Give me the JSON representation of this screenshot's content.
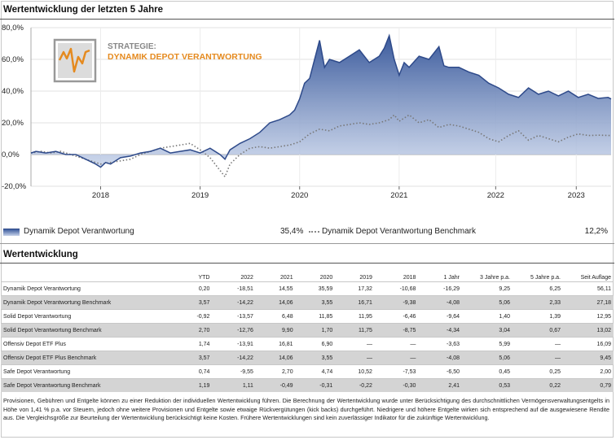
{
  "title": "Wertentwicklung der letzten 5 Jahre",
  "colors": {
    "fund": "#2e4a8a",
    "fill_top": "#3a5a9c",
    "fill_bottom": "#c7d3ea",
    "benchmark": "#777777",
    "logo_orange": "#e58a1f",
    "logo_frame": "#999999"
  },
  "logo": {
    "line1": "STRATEGIE:",
    "line2": "DYNAMIK DEPOT VERANTWORTUNG"
  },
  "chart_data": {
    "type": "line",
    "ylim": [
      -20,
      80
    ],
    "yticks": [
      "80,0%",
      "60,0%",
      "40,0%",
      "20,0%",
      "0,0%",
      "-20,0%"
    ],
    "ytick_values": [
      80,
      60,
      40,
      20,
      0,
      -20
    ],
    "xlim": [
      2017.3,
      2023.13
    ],
    "xticks": [
      "2018",
      "2019",
      "2020",
      "2021",
      "2022",
      "2023"
    ],
    "xtick_values": [
      2018.0,
      2019.0,
      2020.0,
      2021.0,
      2021.97,
      2022.78
    ],
    "grid": true,
    "series": [
      {
        "name": "Dynamik Depot Verantwortung",
        "x": [
          2017.3,
          2017.35,
          2017.45,
          2017.55,
          2017.65,
          2017.75,
          2017.85,
          2017.95,
          2018.0,
          2018.05,
          2018.1,
          2018.15,
          2018.2,
          2018.3,
          2018.4,
          2018.5,
          2018.6,
          2018.7,
          2018.8,
          2018.9,
          2019.0,
          2019.1,
          2019.2,
          2019.25,
          2019.3,
          2019.4,
          2019.5,
          2019.6,
          2019.7,
          2019.8,
          2019.9,
          2019.95,
          2020.0,
          2020.05,
          2020.1,
          2020.15,
          2020.2,
          2020.25,
          2020.3,
          2020.4,
          2020.5,
          2020.6,
          2020.7,
          2020.8,
          2020.85,
          2020.9,
          2020.95,
          2021.0,
          2021.05,
          2021.1,
          2021.2,
          2021.3,
          2021.4,
          2021.45,
          2021.5,
          2021.6,
          2021.7,
          2021.8,
          2021.9,
          2022.0,
          2022.1,
          2022.2,
          2022.3,
          2022.4,
          2022.5,
          2022.6,
          2022.7,
          2022.8,
          2022.9,
          2023.0,
          2023.1,
          2023.13
        ],
        "values": [
          1,
          2,
          1,
          2,
          0,
          0,
          -3,
          -6,
          -8,
          -5,
          -6,
          -4,
          -2,
          -1,
          1,
          2,
          4,
          1,
          2,
          3,
          1,
          4,
          0,
          -3,
          3,
          7,
          10,
          14,
          20,
          22,
          25,
          28,
          35,
          45,
          48,
          60,
          72,
          55,
          60,
          58,
          62,
          66,
          58,
          62,
          67,
          75,
          60,
          50,
          58,
          55,
          62,
          60,
          68,
          56,
          55,
          55,
          52,
          50,
          45,
          42,
          38,
          36,
          42,
          38,
          40,
          37,
          40,
          36,
          38,
          35.4,
          36,
          35
        ]
      },
      {
        "name": "Dynamik Depot Verantwortung Benchmark",
        "x": [
          2017.3,
          2017.4,
          2017.5,
          2017.6,
          2017.7,
          2017.8,
          2017.9,
          2018.0,
          2018.1,
          2018.2,
          2018.3,
          2018.4,
          2018.5,
          2018.6,
          2018.7,
          2018.8,
          2018.9,
          2019.0,
          2019.1,
          2019.2,
          2019.25,
          2019.3,
          2019.4,
          2019.5,
          2019.6,
          2019.7,
          2019.8,
          2019.9,
          2020.0,
          2020.1,
          2020.2,
          2020.3,
          2020.4,
          2020.5,
          2020.6,
          2020.7,
          2020.8,
          2020.9,
          2020.95,
          2021.0,
          2021.1,
          2021.2,
          2021.3,
          2021.4,
          2021.5,
          2021.6,
          2021.7,
          2021.8,
          2021.9,
          2022.0,
          2022.1,
          2022.2,
          2022.3,
          2022.4,
          2022.5,
          2022.6,
          2022.7,
          2022.8,
          2022.9,
          2023.0,
          2023.13
        ],
        "values": [
          1,
          2,
          1,
          2,
          0,
          -2,
          -4,
          -6,
          -5,
          -4,
          -3,
          0,
          2,
          4,
          5,
          6,
          7,
          3,
          -2,
          -10,
          -14,
          -6,
          0,
          4,
          5,
          4,
          5,
          6,
          8,
          13,
          16,
          15,
          18,
          19,
          20,
          19,
          20,
          22,
          25,
          21,
          25,
          20,
          22,
          17,
          19,
          18,
          16,
          14,
          10,
          8,
          12,
          15,
          9,
          12,
          10,
          8,
          11,
          13,
          12,
          12.2,
          12
        ]
      }
    ]
  },
  "legend": {
    "fund_label": "Dynamik Depot Verantwortung",
    "fund_value": "35,4%",
    "bench_label": "Dynamik Depot Verantwortung Benchmark",
    "bench_value": "12,2%"
  },
  "table": {
    "title": "Wertentwicklung",
    "headers": [
      "",
      "YTD",
      "2022",
      "2021",
      "2020",
      "2019",
      "2018",
      "1 Jahr",
      "3 Jahre p.a.",
      "5 Jahre p.a.",
      "Seit Auflage"
    ],
    "rows": [
      [
        "Dynamik Depot Verantwortung",
        "0,20",
        "-18,51",
        "14,55",
        "35,59",
        "17,32",
        "-10,68",
        "-16,29",
        "9,25",
        "6,25",
        "56,11"
      ],
      [
        "Dynamik Depot Verantwortung Benchmark",
        "3,57",
        "-14,22",
        "14,06",
        "3,55",
        "16,71",
        "-9,38",
        "-4,08",
        "5,06",
        "2,33",
        "27,18"
      ],
      [
        "Solid Depot Verantwortung",
        "-0,92",
        "-13,57",
        "6,48",
        "11,85",
        "11,95",
        "-6,46",
        "-9,64",
        "1,40",
        "1,39",
        "12,95"
      ],
      [
        "Solid Depot Verantwortung Benchmark",
        "2,70",
        "-12,76",
        "9,90",
        "1,70",
        "11,75",
        "-8,75",
        "-4,34",
        "3,04",
        "0,67",
        "13,02"
      ],
      [
        "Offensiv Depot ETF Plus",
        "1,74",
        "-13,91",
        "16,81",
        "6,90",
        "—",
        "—",
        "-3,63",
        "5,99",
        "—",
        "16,09"
      ],
      [
        "Offensiv Depot ETF Plus Benchmark",
        "3,57",
        "-14,22",
        "14,06",
        "3,55",
        "—",
        "—",
        "-4,08",
        "5,06",
        "—",
        "9,45"
      ],
      [
        "Safe Depot Verantwortung",
        "0,74",
        "-9,55",
        "2,70",
        "4,74",
        "10,52",
        "-7,53",
        "-6,50",
        "0,45",
        "0,25",
        "2,00"
      ],
      [
        "Safe Depot Verantwortung Benchmark",
        "1,19",
        "1,11",
        "-0,49",
        "-0,31",
        "-0,22",
        "-0,30",
        "2,41",
        "0,53",
        "0,22",
        "0,79"
      ]
    ]
  },
  "footnote": "Provisionen, Gebühren und Entgelte können zu einer Reduktion der individuellen Wertentwicklung führen. Die Berechnung der Wertentwicklung wurde unter Berücksichtigung des durchschnittlichen Vermögensverwaltungsentgelts in Höhe von 1,41 % p.a. vor Steuern, jedoch ohne weitere Provisionen und Entgelte sowie etwaige Rückvergütungen (kick backs) durchgeführt. Niedrigere und höhere Entgelte wirken sich entsprechend auf die ausgewiesene Rendite aus. Die Vergleichsgröße zur Beurteilung der Wertentwicklung berücksichtigt keine Kosten. Frühere Wertentwicklungen sind kein zuverlässiger Indikator für die zukünftige Wertentwicklung."
}
